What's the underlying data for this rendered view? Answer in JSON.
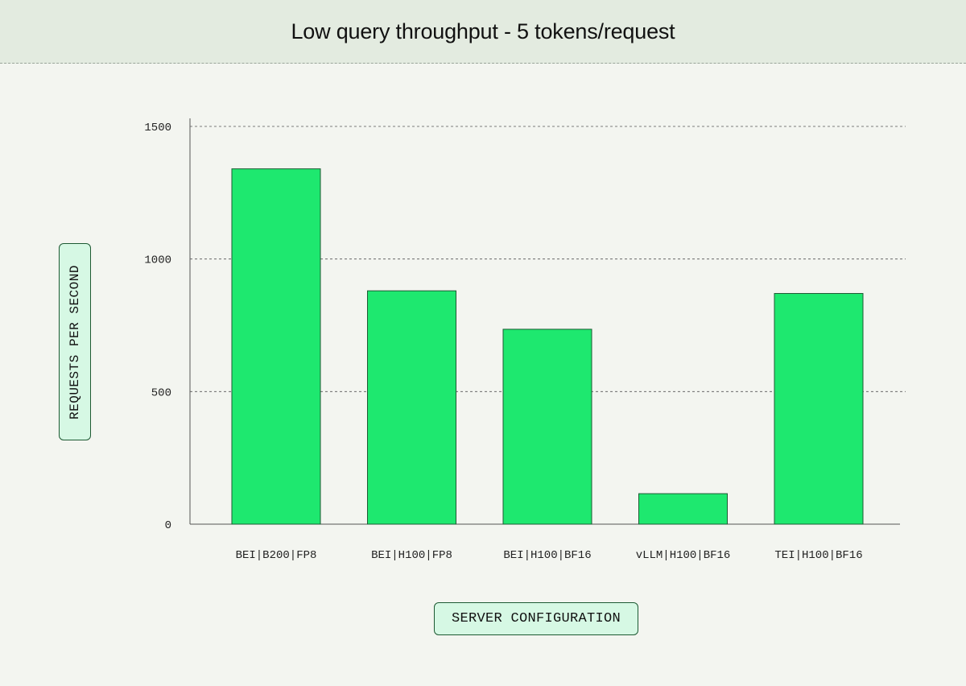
{
  "chart_data": {
    "type": "bar",
    "title": "Low query throughput - 5 tokens/request",
    "xlabel": "SERVER CONFIGURATION",
    "ylabel": "REQUESTS PER SECOND",
    "categories": [
      "BEI|B200|FP8",
      "BEI|H100|FP8",
      "BEI|H100|BF16",
      "vLLM|H100|BF16",
      "TEI|H100|BF16"
    ],
    "values": [
      1340,
      880,
      735,
      115,
      870
    ],
    "ylim": [
      0,
      1500
    ],
    "yticks": [
      "0",
      "500",
      "1000",
      "1500"
    ],
    "grid": true,
    "bar_color": "#1ee86f",
    "bar_edge_color": "#1d5a33"
  }
}
